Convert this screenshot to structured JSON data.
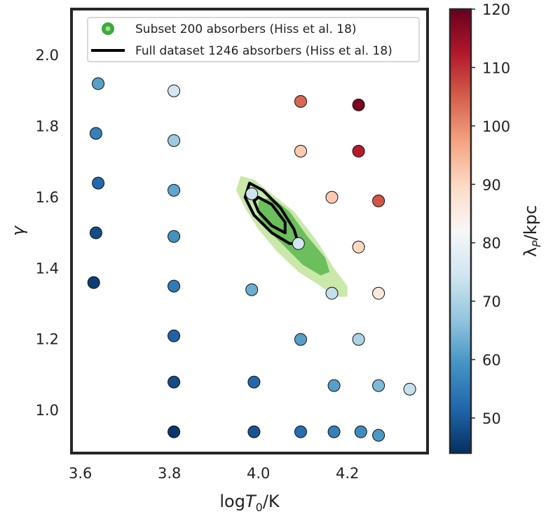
{
  "chart_data": {
    "type": "scatter",
    "xlabel": "logT0/K",
    "xlabel_main": "log",
    "xlabel_var": "T",
    "xlabel_sub": "0",
    "xlabel_unit": "/K",
    "ylabel": "γ",
    "xlim": [
      3.58,
      4.38
    ],
    "ylim": [
      0.88,
      2.13
    ],
    "xticks": [
      3.6,
      3.8,
      4.0,
      4.2
    ],
    "xtick_labels": [
      "3.6",
      "3.8",
      "4.0",
      "4.2"
    ],
    "yticks": [
      1.0,
      1.2,
      1.4,
      1.6,
      1.8,
      2.0
    ],
    "ytick_labels": [
      "1.0",
      "1.2",
      "1.4",
      "1.6",
      "1.8",
      "2.0"
    ],
    "grid": false,
    "colorbar": {
      "label": "λP/kpc",
      "label_main": "λ",
      "label_sub": "P",
      "label_unit": "/kpc",
      "range": [
        44,
        120
      ],
      "ticks": [
        50,
        60,
        70,
        80,
        90,
        100,
        110,
        120
      ],
      "tick_labels": [
        "50",
        "60",
        "70",
        "80",
        "90",
        "100",
        "110",
        "120"
      ],
      "colormap": "RdBu_r"
    },
    "legend": {
      "placement": "top",
      "entries": [
        {
          "label": "Subset 200 absorbers (Hiss et al. 18)",
          "style": "filled-contour",
          "color": "#3caa3c"
        },
        {
          "label": "Full dataset 1246 absorbers (Hiss et al. 18)",
          "style": "line",
          "color": "#000000"
        }
      ]
    },
    "contours": {
      "subset_outer": {
        "color": "#c9e8aa",
        "points": [
          [
            3.96,
            1.66
          ],
          [
            3.99,
            1.65
          ],
          [
            4.03,
            1.61
          ],
          [
            4.08,
            1.56
          ],
          [
            4.13,
            1.48
          ],
          [
            4.17,
            1.4
          ],
          [
            4.2,
            1.35
          ],
          [
            4.2,
            1.32
          ],
          [
            4.17,
            1.32
          ],
          [
            4.14,
            1.35
          ],
          [
            4.09,
            1.39
          ],
          [
            4.04,
            1.45
          ],
          [
            4.0,
            1.51
          ],
          [
            3.97,
            1.57
          ],
          [
            3.95,
            1.62
          ]
        ]
      },
      "subset_inner": {
        "color": "#6bbf5d",
        "points": [
          [
            4.03,
            1.6
          ],
          [
            4.07,
            1.56
          ],
          [
            4.11,
            1.49
          ],
          [
            4.15,
            1.43
          ],
          [
            4.16,
            1.39
          ],
          [
            4.14,
            1.38
          ],
          [
            4.1,
            1.41
          ],
          [
            4.06,
            1.46
          ],
          [
            4.02,
            1.51
          ],
          [
            4.0,
            1.55
          ],
          [
            4.0,
            1.59
          ]
        ]
      },
      "full_outer": {
        "color": "#000000",
        "points": [
          [
            3.98,
            1.64
          ],
          [
            4.01,
            1.62
          ],
          [
            4.05,
            1.57
          ],
          [
            4.08,
            1.51
          ],
          [
            4.09,
            1.47
          ],
          [
            4.07,
            1.47
          ],
          [
            4.03,
            1.5
          ],
          [
            3.99,
            1.55
          ],
          [
            3.97,
            1.6
          ]
        ]
      },
      "full_inner": {
        "color": "#000000",
        "points": [
          [
            4.0,
            1.6
          ],
          [
            4.03,
            1.58
          ],
          [
            4.06,
            1.53
          ],
          [
            4.06,
            1.5
          ],
          [
            4.03,
            1.52
          ],
          [
            4.0,
            1.56
          ],
          [
            3.99,
            1.59
          ]
        ]
      }
    },
    "points": [
      {
        "x": 3.64,
        "y": 1.92,
        "v": 61
      },
      {
        "x": 3.635,
        "y": 1.78,
        "v": 56
      },
      {
        "x": 3.64,
        "y": 1.64,
        "v": 52
      },
      {
        "x": 3.635,
        "y": 1.5,
        "v": 48
      },
      {
        "x": 3.63,
        "y": 1.36,
        "v": 46
      },
      {
        "x": 3.81,
        "y": 1.9,
        "v": 75
      },
      {
        "x": 3.81,
        "y": 1.76,
        "v": 68
      },
      {
        "x": 3.81,
        "y": 1.62,
        "v": 62
      },
      {
        "x": 3.81,
        "y": 1.49,
        "v": 59
      },
      {
        "x": 3.81,
        "y": 1.35,
        "v": 55
      },
      {
        "x": 3.81,
        "y": 1.21,
        "v": 51
      },
      {
        "x": 3.81,
        "y": 1.08,
        "v": 48
      },
      {
        "x": 3.81,
        "y": 0.94,
        "v": 45
      },
      {
        "x": 3.985,
        "y": 1.34,
        "v": 63
      },
      {
        "x": 3.99,
        "y": 1.08,
        "v": 52
      },
      {
        "x": 3.99,
        "y": 0.94,
        "v": 49
      },
      {
        "x": 3.985,
        "y": 1.61,
        "v": 74
      },
      {
        "x": 4.09,
        "y": 1.47,
        "v": 75
      },
      {
        "x": 4.095,
        "y": 1.87,
        "v": 104
      },
      {
        "x": 4.095,
        "y": 1.73,
        "v": 92
      },
      {
        "x": 4.095,
        "y": 1.2,
        "v": 61
      },
      {
        "x": 4.095,
        "y": 0.94,
        "v": 53
      },
      {
        "x": 4.165,
        "y": 1.6,
        "v": 92
      },
      {
        "x": 4.165,
        "y": 1.33,
        "v": 73
      },
      {
        "x": 4.17,
        "y": 1.07,
        "v": 61
      },
      {
        "x": 4.17,
        "y": 0.94,
        "v": 56
      },
      {
        "x": 4.225,
        "y": 1.86,
        "v": 118
      },
      {
        "x": 4.225,
        "y": 1.73,
        "v": 112
      },
      {
        "x": 4.225,
        "y": 1.46,
        "v": 90
      },
      {
        "x": 4.225,
        "y": 1.2,
        "v": 70
      },
      {
        "x": 4.23,
        "y": 0.94,
        "v": 58
      },
      {
        "x": 4.27,
        "y": 1.59,
        "v": 106
      },
      {
        "x": 4.27,
        "y": 1.33,
        "v": 86
      },
      {
        "x": 4.27,
        "y": 1.07,
        "v": 65
      },
      {
        "x": 4.27,
        "y": 0.93,
        "v": 60
      },
      {
        "x": 4.34,
        "y": 1.06,
        "v": 73
      }
    ]
  }
}
